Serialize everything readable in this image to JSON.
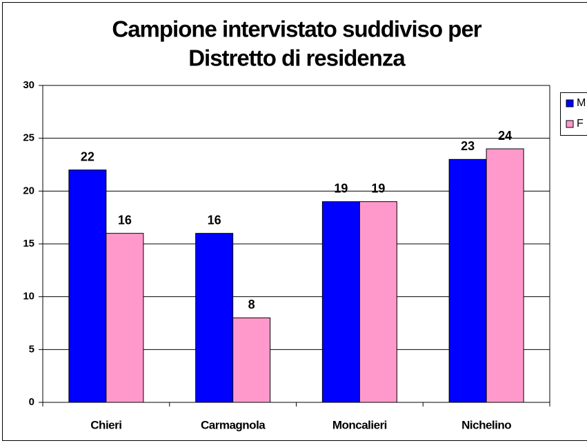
{
  "chart_data": {
    "type": "bar",
    "title": [
      "Campione intervistato suddiviso per",
      "Distretto di residenza"
    ],
    "categories": [
      "Chieri",
      "Carmagnola",
      "Moncalieri",
      "Nichelino"
    ],
    "series": [
      {
        "name": "M",
        "color": "#0000ff",
        "values": [
          22,
          16,
          19,
          23
        ]
      },
      {
        "name": "F",
        "color": "#ff99cc",
        "values": [
          16,
          8,
          19,
          24
        ]
      }
    ],
    "ylim": [
      0,
      30
    ],
    "yticks": [
      0,
      5,
      10,
      15,
      20,
      25,
      30
    ],
    "grid": true,
    "legend": "right"
  }
}
